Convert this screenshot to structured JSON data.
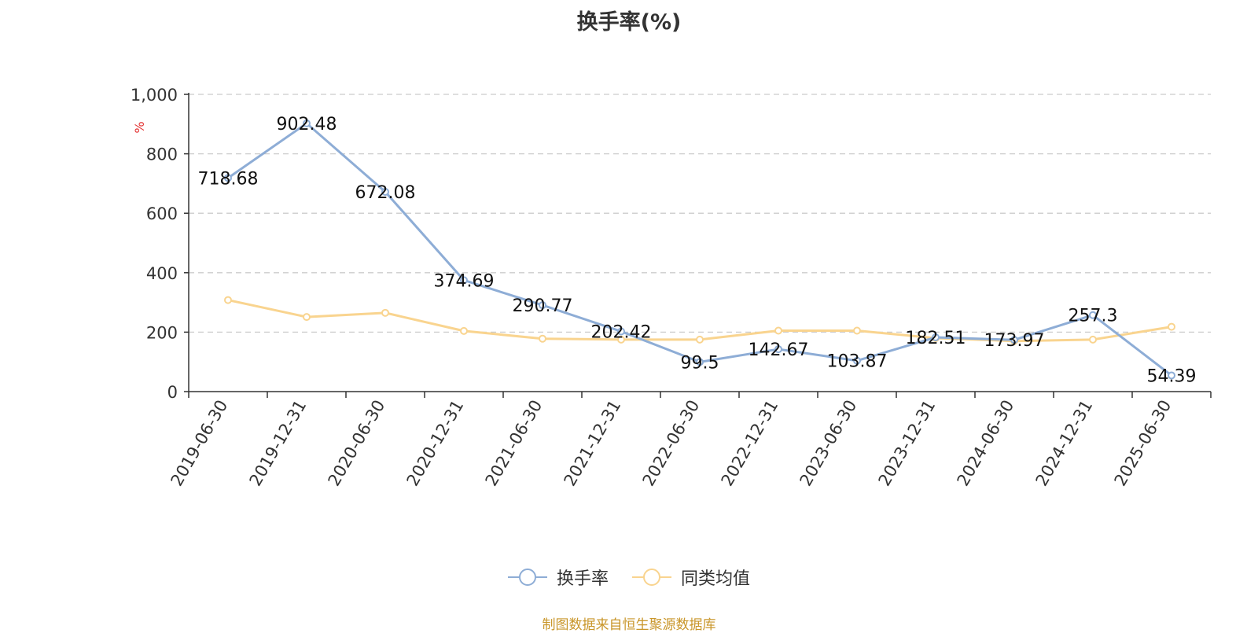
{
  "title": "换手率(%)",
  "source": "制图数据来自恒生聚源数据库",
  "chart_data": {
    "type": "line",
    "title": "换手率(%)",
    "ylabel": "%",
    "ylim": [
      0,
      1000
    ],
    "yticks": [
      0,
      200,
      400,
      600,
      800,
      1000
    ],
    "ytick_labels": [
      "0",
      "200",
      "400",
      "600",
      "800",
      "1,000"
    ],
    "grid": true,
    "legend_position": "bottom-center",
    "categories": [
      "2019-06-30",
      "2019-12-31",
      "2020-06-30",
      "2020-12-31",
      "2021-06-30",
      "2021-12-31",
      "2022-06-30",
      "2022-12-31",
      "2023-06-30",
      "2023-12-31",
      "2024-06-30",
      "2024-12-31",
      "2025-06-30"
    ],
    "series": [
      {
        "name": "换手率",
        "color": "#8eadd6",
        "values": [
          718.68,
          902.48,
          672.08,
          374.69,
          290.77,
          202.42,
          99.5,
          142.67,
          103.87,
          182.51,
          173.97,
          257.3,
          54.39
        ],
        "labels": [
          "718.68",
          "902.48",
          "672.08",
          "374.69",
          "290.77",
          "202.42",
          "99.5",
          "142.67",
          "103.87",
          "182.51",
          "173.97",
          "257.3",
          "54.39"
        ]
      },
      {
        "name": "同类均值",
        "color": "#f9d48f",
        "values": [
          308,
          251,
          265,
          204,
          178,
          175,
          175,
          205,
          205,
          180,
          170,
          175,
          218
        ]
      }
    ]
  }
}
